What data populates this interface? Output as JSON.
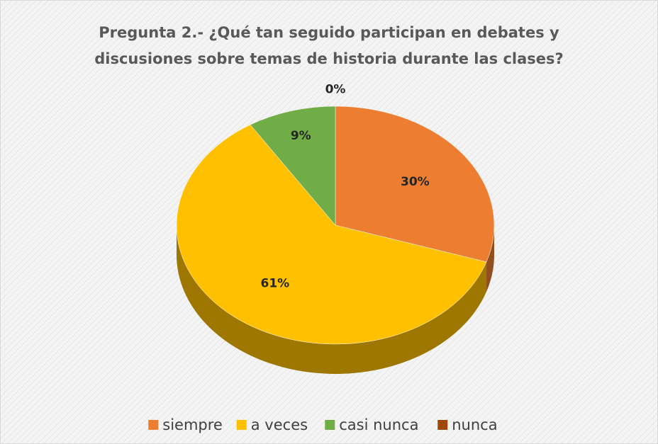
{
  "chart_data": {
    "type": "pie",
    "title": "Pregunta 2.- ¿Qué tan seguido participan en debates y discusiones sobre temas de historia durante las clases?",
    "categories": [
      "siempre",
      "a veces",
      "casi nunca",
      "nunca"
    ],
    "values": [
      30,
      61,
      9,
      0
    ],
    "value_labels": [
      "30%",
      "61%",
      "9%",
      "0%"
    ],
    "colors": [
      "#ed7d31",
      "#ffc000",
      "#70ad47",
      "#9e480e"
    ],
    "legend": "bottom"
  }
}
